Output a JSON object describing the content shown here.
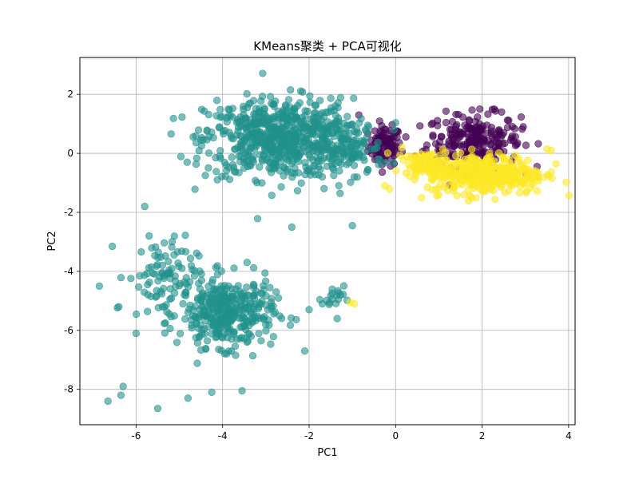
{
  "chart_data": {
    "type": "scatter",
    "title": "KMeans聚类 + PCA可视化",
    "xlabel": "PC1",
    "ylabel": "PC2",
    "xlim": [
      -7.3,
      4.15
    ],
    "ylim": [
      -9.2,
      3.25
    ],
    "xticks": [
      -6,
      -4,
      -2,
      0,
      2,
      4
    ],
    "yticks": [
      -8,
      -6,
      -4,
      -2,
      0,
      2
    ],
    "xtick_labels": [
      "-6",
      "-4",
      "-2",
      "0",
      "2",
      "4"
    ],
    "ytick_labels": [
      "-8",
      "-6",
      "-4",
      "-2",
      "0",
      "2"
    ],
    "grid": true,
    "legend": "none",
    "point_alpha": 0.6,
    "series": [
      {
        "color": "#440154",
        "clusters": [
          {
            "cx": -0.25,
            "cy": 0.25,
            "rx": 0.42,
            "ry": 0.75,
            "n": 90
          },
          {
            "cx": 1.8,
            "cy": 0.45,
            "rx": 1.2,
            "ry": 1.0,
            "n": 230
          }
        ],
        "points": [
          [
            -0.85,
            1.3
          ],
          [
            2.95,
            0.9
          ],
          [
            2.45,
            1.4
          ],
          [
            0.45,
            -0.1
          ]
        ]
      },
      {
        "color": "#21918c",
        "clusters": [
          {
            "cx": -2.7,
            "cy": 0.5,
            "rx": 1.9,
            "ry": 1.5,
            "n": 650
          },
          {
            "cx": -1.1,
            "cy": 0.2,
            "rx": 0.9,
            "ry": 1.1,
            "n": 120
          },
          {
            "cx": -3.9,
            "cy": -5.4,
            "rx": 1.2,
            "ry": 1.3,
            "n": 360
          },
          {
            "cx": -5.4,
            "cy": -4.2,
            "rx": 0.9,
            "ry": 1.5,
            "n": 90
          },
          {
            "cx": -1.45,
            "cy": -4.9,
            "rx": 0.28,
            "ry": 0.45,
            "n": 18
          }
        ],
        "points": [
          [
            -6.85,
            -4.5
          ],
          [
            -6.55,
            -3.15
          ],
          [
            -6.65,
            -8.4
          ],
          [
            -5.5,
            -8.65
          ],
          [
            -6.35,
            -8.2
          ],
          [
            -6.3,
            -7.9
          ],
          [
            -5.8,
            -1.8
          ],
          [
            -5.7,
            -2.8
          ],
          [
            -4.25,
            -8.1
          ],
          [
            -4.8,
            -8.3
          ],
          [
            -3.55,
            -8.05
          ],
          [
            -6.4,
            -5.2
          ],
          [
            -6.0,
            -6.1
          ],
          [
            -2.4,
            -2.5
          ],
          [
            -2.0,
            -5.3
          ],
          [
            -1.35,
            -5.6
          ],
          [
            -1.0,
            -2.45
          ],
          [
            -2.1,
            -6.7
          ]
        ]
      },
      {
        "color": "#fde725",
        "clusters": [
          {
            "cx": 2.1,
            "cy": -0.7,
            "rx": 1.5,
            "ry": 0.75,
            "n": 380
          },
          {
            "cx": 0.7,
            "cy": -0.35,
            "rx": 0.55,
            "ry": 0.4,
            "n": 80
          }
        ],
        "points": [
          [
            -1.05,
            -5.05
          ],
          [
            -0.95,
            -5.1
          ],
          [
            -0.25,
            -1.1
          ],
          [
            0.15,
            0.2
          ],
          [
            0.6,
            -1.5
          ],
          [
            3.5,
            0.15
          ],
          [
            3.6,
            0.1
          ]
        ]
      }
    ]
  }
}
